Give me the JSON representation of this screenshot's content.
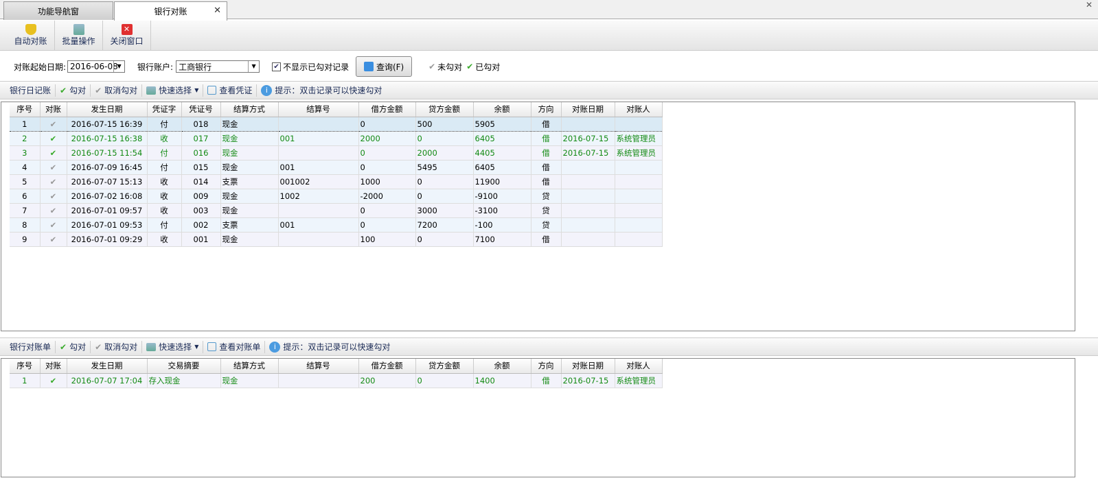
{
  "tabs": [
    {
      "label": "功能导航窗"
    },
    {
      "label": "银行对账",
      "close": "✕"
    }
  ],
  "window_close": "✕",
  "toolbar": [
    {
      "label": "自动对账",
      "icon": "shield-icon"
    },
    {
      "label": "批量操作",
      "icon": "batch-icon"
    },
    {
      "label": "关闭窗口",
      "icon": "close-window-icon"
    }
  ],
  "filter": {
    "start_label": "对账起始日期:",
    "start_value": "2016-06-08",
    "account_label": "银行账户:",
    "account_value": "工商银行",
    "hide_label": "不显示已勾对记录",
    "hide_checked": true,
    "query_label": "查询(F)",
    "legend_unchecked": "未勾对",
    "legend_checked": "已勾对"
  },
  "journal_bar": {
    "title": "银行日记账",
    "check": "勾对",
    "uncheck": "取消勾对",
    "quick": "快速选择",
    "view": "查看凭证",
    "hint": "提示：双击记录可以快速勾对"
  },
  "statement_bar": {
    "title": "银行对账单",
    "check": "勾对",
    "uncheck": "取消勾对",
    "quick": "快速选择",
    "view": "查看对账单",
    "hint": "提示：双击记录可以快速勾对"
  },
  "journal": {
    "columns": [
      "序号",
      "对账",
      "发生日期",
      "凭证字",
      "凭证号",
      "结算方式",
      "结算号",
      "借方金额",
      "贷方金额",
      "余额",
      "方向",
      "对账日期",
      "对账人"
    ],
    "rows": [
      [
        "1",
        false,
        "2016-07-15 16:39",
        "付",
        "018",
        "现金",
        "",
        "0",
        "500",
        "5905",
        "借",
        "",
        ""
      ],
      [
        "2",
        true,
        "2016-07-15 16:38",
        "收",
        "017",
        "现金",
        "001",
        "2000",
        "0",
        "6405",
        "借",
        "2016-07-15",
        "系统管理员"
      ],
      [
        "3",
        true,
        "2016-07-15 11:54",
        "付",
        "016",
        "现金",
        "",
        "0",
        "2000",
        "4405",
        "借",
        "2016-07-15",
        "系统管理员"
      ],
      [
        "4",
        false,
        "2016-07-09 16:45",
        "付",
        "015",
        "现金",
        "001",
        "0",
        "5495",
        "6405",
        "借",
        "",
        ""
      ],
      [
        "5",
        false,
        "2016-07-07 15:13",
        "收",
        "014",
        "支票",
        "001002",
        "1000",
        "0",
        "11900",
        "借",
        "",
        ""
      ],
      [
        "6",
        false,
        "2016-07-02 16:08",
        "收",
        "009",
        "现金",
        "1002",
        "-2000",
        "0",
        "-9100",
        "贷",
        "",
        ""
      ],
      [
        "7",
        false,
        "2016-07-01 09:57",
        "收",
        "003",
        "现金",
        "",
        "0",
        "3000",
        "-3100",
        "贷",
        "",
        ""
      ],
      [
        "8",
        false,
        "2016-07-01 09:53",
        "付",
        "002",
        "支票",
        "001",
        "0",
        "7200",
        "-100",
        "贷",
        "",
        ""
      ],
      [
        "9",
        false,
        "2016-07-01 09:29",
        "收",
        "001",
        "现金",
        "",
        "100",
        "0",
        "7100",
        "借",
        "",
        ""
      ]
    ]
  },
  "statement": {
    "columns": [
      "序号",
      "对账",
      "发生日期",
      "交易摘要",
      "结算方式",
      "结算号",
      "借方金额",
      "贷方金额",
      "余额",
      "方向",
      "对账日期",
      "对账人"
    ],
    "rows": [
      [
        "1",
        true,
        "2016-07-07 17:04",
        "存入现金",
        "现金",
        "",
        "200",
        "0",
        "1400",
        "借",
        "2016-07-15",
        "系统管理员"
      ]
    ]
  }
}
